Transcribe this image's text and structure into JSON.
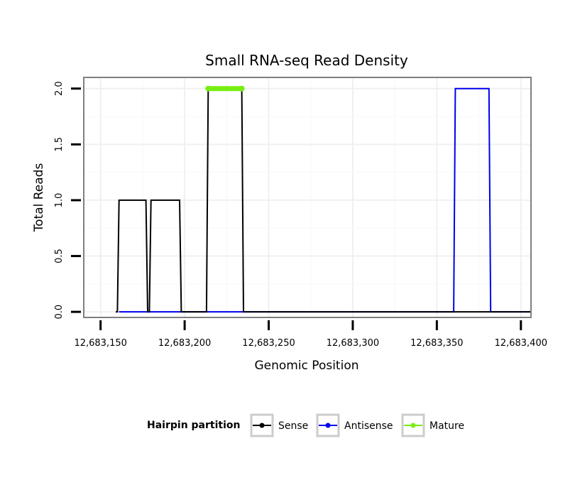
{
  "chart_data": {
    "type": "line",
    "title": "Small RNA-seq Read Density",
    "xlabel": "Genomic Position",
    "ylabel": "Total Reads",
    "xlim": [
      12683140,
      12683406
    ],
    "ylim": [
      -0.05,
      2.1
    ],
    "x_ticks": [
      12683150,
      12683200,
      12683250,
      12683300,
      12683350,
      12683400
    ],
    "x_tick_labels": [
      "12,683,150",
      "12,683,200",
      "12,683,250",
      "12,683,300",
      "12,683,350",
      "12,683,400"
    ],
    "y_ticks": [
      0,
      0.5,
      1,
      1.5,
      2
    ],
    "y_tick_labels": [
      "0.0",
      "0.5",
      "1.0",
      "1.5",
      "2.0"
    ],
    "grid": true,
    "legend": {
      "title": "Hairpin partition",
      "position": "bottom",
      "entries": [
        {
          "name": "Sense",
          "color": "#000000"
        },
        {
          "name": "Antisense",
          "color": "#0000ee"
        },
        {
          "name": "Mature",
          "color": "#77ee11"
        }
      ]
    },
    "series": [
      {
        "name": "Sense",
        "color": "#000000",
        "x": [
          12683159,
          12683160,
          12683161,
          12683177,
          12683178,
          12683179,
          12683180,
          12683197,
          12683198,
          12683199,
          12683213,
          12683214,
          12683234,
          12683235,
          12683236,
          12683406
        ],
        "y": [
          0,
          0,
          1,
          1,
          0,
          0,
          1,
          1,
          0,
          0,
          0,
          2,
          2,
          0,
          0,
          0
        ]
      },
      {
        "name": "Antisense",
        "color": "#0000ee",
        "x": [
          12683161,
          12683360,
          12683361,
          12683381,
          12683382,
          12683406
        ],
        "y": [
          0,
          0,
          2,
          2,
          0,
          0
        ]
      },
      {
        "name": "Mature",
        "color": "#77ee11",
        "x": [
          12683214,
          12683234
        ],
        "y": [
          2,
          2
        ]
      }
    ]
  }
}
